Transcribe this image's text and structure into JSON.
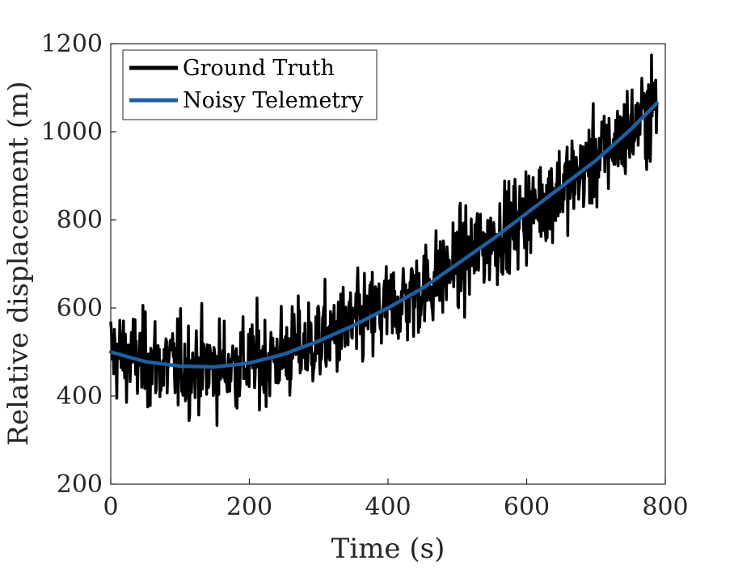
{
  "chart_data": {
    "type": "line",
    "title": "",
    "xlabel": "Time (s)",
    "ylabel": "Relative displacement (m)",
    "xlim": [
      0,
      800
    ],
    "ylim": [
      200,
      1200
    ],
    "xticks": [
      "0",
      "200",
      "400",
      "600",
      "800"
    ],
    "yticks": [
      "200",
      "400",
      "600",
      "800",
      "1000",
      "1200"
    ],
    "grid": false,
    "legend_position": "top-left",
    "series": [
      {
        "name": "Ground Truth",
        "color": "#000000",
        "style": "noisy",
        "x_range": [
          0,
          788
        ],
        "noise_sd_m": 52,
        "trend_x": [
          0,
          50,
          100,
          150,
          200,
          250,
          300,
          350,
          400,
          450,
          500,
          550,
          600,
          650,
          700,
          750,
          788
        ],
        "trend_y": [
          500,
          478,
          468,
          466,
          475,
          495,
          525,
          560,
          600,
          645,
          700,
          755,
          815,
          875,
          935,
          1005,
          1065
        ]
      },
      {
        "name": "Noisy Telemetry",
        "color": "#1f5fa0",
        "style": "smooth",
        "x": [
          0,
          50,
          100,
          150,
          200,
          250,
          300,
          350,
          400,
          450,
          500,
          550,
          600,
          650,
          700,
          750,
          788
        ],
        "y": [
          500,
          478,
          468,
          466,
          475,
          495,
          525,
          560,
          600,
          645,
          700,
          755,
          815,
          875,
          935,
          1005,
          1065
        ]
      }
    ]
  }
}
